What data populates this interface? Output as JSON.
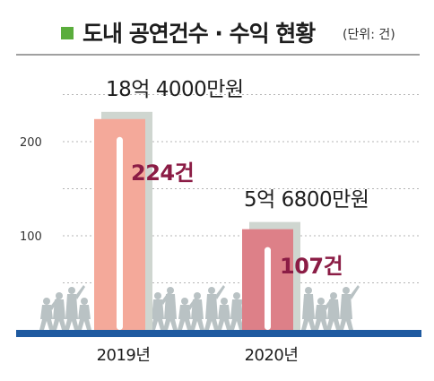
{
  "header": {
    "title": "도내 공연건수 · 수익 현황",
    "unit": "(단위: 건)"
  },
  "colors": {
    "accent_square": "#5aad3c",
    "bar_2019": "#f4a99a",
    "bar_2020": "#dd8088",
    "bar_shadow": "#cfd6d0",
    "value_text": "#8b1c45",
    "baseline": "#1f5aa0"
  },
  "chart_data": {
    "type": "bar",
    "title": "도내 공연건수 · 수익 현황",
    "unit": "(단위: 건)",
    "categories": [
      "2019년",
      "2020년"
    ],
    "values": [
      224,
      107
    ],
    "value_labels": [
      "224건",
      "107건"
    ],
    "revenue_labels": [
      "18억 4000만원",
      "5억 6800만원"
    ],
    "ylim": [
      0,
      250
    ],
    "yticks": [
      100,
      200
    ],
    "ytick_labels": [
      "100",
      "200"
    ],
    "grid": true,
    "legend": "none"
  }
}
